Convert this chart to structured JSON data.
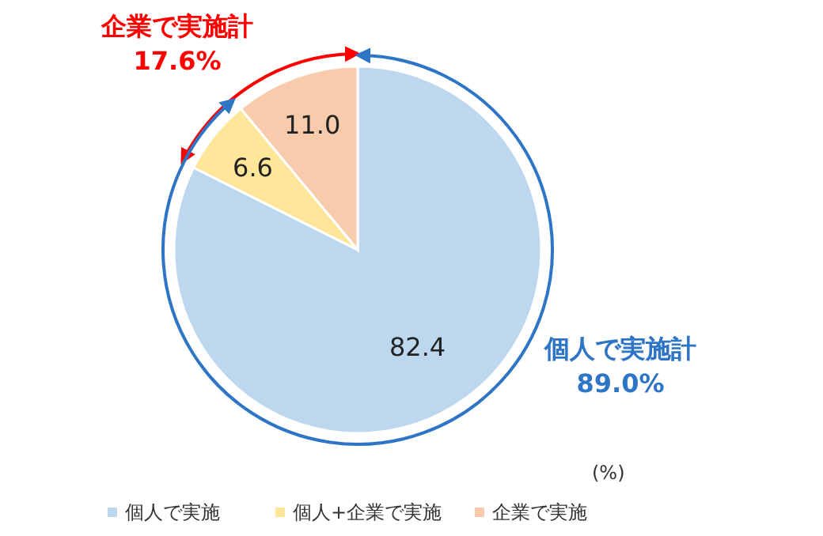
{
  "chart_data": {
    "type": "pie",
    "categories": [
      "個人で実施",
      "個人+企業で実施",
      "企業で実施"
    ],
    "values": [
      82.4,
      6.6,
      11.0
    ],
    "colors": [
      "#bdd7ee",
      "#ffe699",
      "#f8cbad"
    ],
    "value_labels": [
      "82.4",
      "6.6",
      "11.0"
    ],
    "legend": "bottom",
    "annotations": [
      "企業で実施計\n17.6%",
      "個人で実施計\n89.0%",
      "(%)"
    ]
  }
}
